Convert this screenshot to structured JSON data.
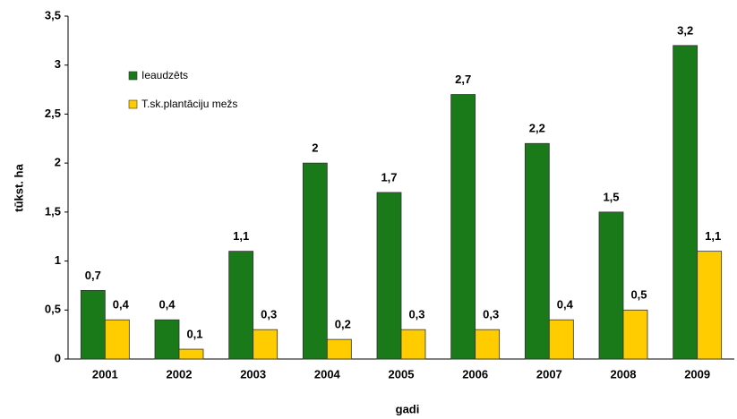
{
  "chart_data": {
    "type": "bar",
    "x_label": "gadi",
    "y_label": "tūkst. ha",
    "categories": [
      "2001",
      "2002",
      "2003",
      "2004",
      "2005",
      "2006",
      "2007",
      "2008",
      "2009"
    ],
    "series": [
      {
        "name": "Ieaudzēts",
        "color": "#1a7a1a",
        "values": [
          0.7,
          0.4,
          1.1,
          2,
          1.7,
          2.7,
          2.2,
          1.5,
          3.2
        ],
        "value_labels": [
          "0,7",
          "0,4",
          "1,1",
          "2",
          "1,7",
          "2,7",
          "2,2",
          "1,5",
          "3,2"
        ]
      },
      {
        "name": "T.sk.plantāciju mežs",
        "color": "#ffcc00",
        "values": [
          0.4,
          0.1,
          0.3,
          0.2,
          0.3,
          0.3,
          0.4,
          0.5,
          1.1
        ],
        "value_labels": [
          "0,4",
          "0,1",
          "0,3",
          "0,2",
          "0,3",
          "0,3",
          "0,4",
          "0,5",
          "1,1"
        ]
      }
    ],
    "ylim": [
      0,
      3.5
    ],
    "yticks": [
      0,
      {
        "value": 0.5,
        "label": "0,5"
      },
      1,
      {
        "value": 1.5,
        "label": "1,5"
      },
      2,
      {
        "value": 2.5,
        "label": "2,5"
      },
      3,
      {
        "value": 3.5,
        "label": "3,5"
      }
    ],
    "grid": false,
    "legend": "upper left"
  }
}
